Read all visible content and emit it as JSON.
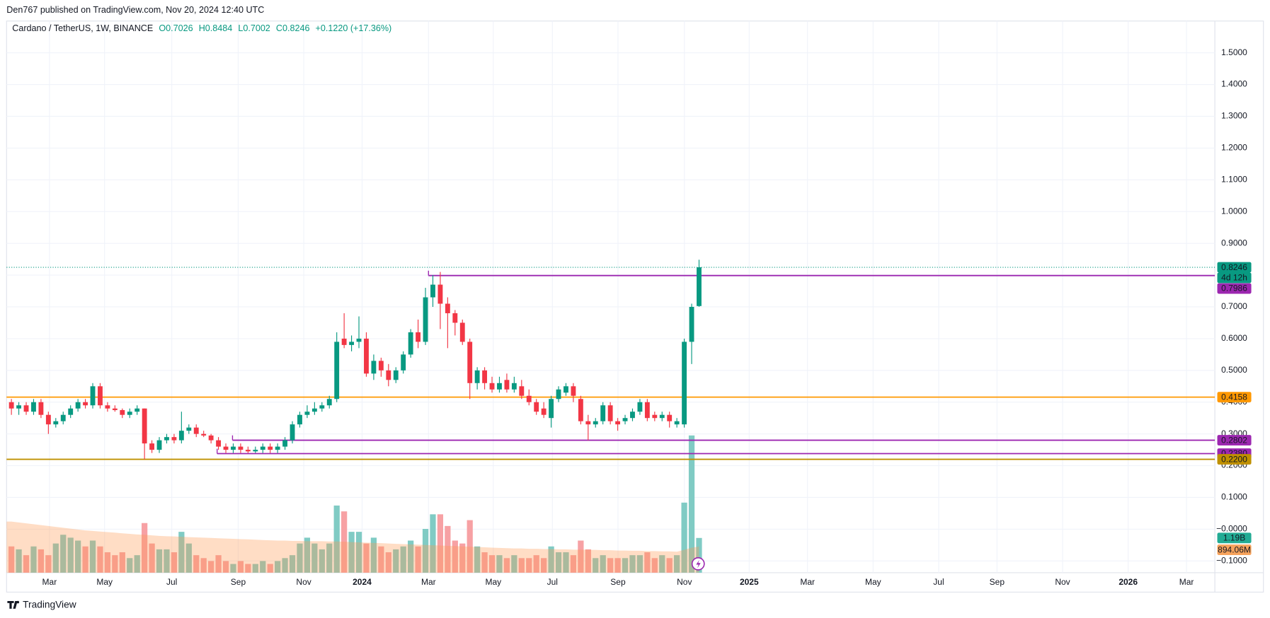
{
  "chart_data": {
    "type": "candlestick",
    "publisher": "Den767 published on TradingView.com, Nov 20, 2024 12:40 UTC",
    "symbol": "Cardano / TetherUS, 1W, BINANCE",
    "ohlc": [
      "O0.7026",
      "H0.8484",
      "L0.7002",
      "C0.8246"
    ],
    "change": "+0.1220 (+17.36%)",
    "countdown": "4d 12h",
    "up_color": "#089981",
    "down_color": "#f23645",
    "candles": [
      [
        0.4,
        0.41,
        0.36,
        0.38
      ],
      [
        0.38,
        0.4,
        0.36,
        0.39
      ],
      [
        0.39,
        0.4,
        0.36,
        0.37
      ],
      [
        0.37,
        0.41,
        0.36,
        0.4
      ],
      [
        0.4,
        0.41,
        0.35,
        0.36
      ],
      [
        0.36,
        0.37,
        0.3,
        0.33
      ],
      [
        0.33,
        0.35,
        0.32,
        0.34
      ],
      [
        0.34,
        0.37,
        0.33,
        0.36
      ],
      [
        0.36,
        0.39,
        0.35,
        0.38
      ],
      [
        0.38,
        0.41,
        0.37,
        0.4
      ],
      [
        0.4,
        0.41,
        0.38,
        0.39
      ],
      [
        0.39,
        0.46,
        0.38,
        0.45
      ],
      [
        0.45,
        0.46,
        0.38,
        0.39
      ],
      [
        0.39,
        0.4,
        0.37,
        0.38
      ],
      [
        0.38,
        0.39,
        0.37,
        0.375
      ],
      [
        0.375,
        0.38,
        0.35,
        0.36
      ],
      [
        0.36,
        0.38,
        0.35,
        0.37
      ],
      [
        0.37,
        0.39,
        0.36,
        0.38
      ],
      [
        0.38,
        0.38,
        0.22,
        0.27
      ],
      [
        0.27,
        0.28,
        0.24,
        0.25
      ],
      [
        0.25,
        0.29,
        0.24,
        0.28
      ],
      [
        0.28,
        0.3,
        0.27,
        0.29
      ],
      [
        0.29,
        0.3,
        0.27,
        0.28
      ],
      [
        0.28,
        0.37,
        0.27,
        0.31
      ],
      [
        0.31,
        0.33,
        0.3,
        0.32
      ],
      [
        0.32,
        0.33,
        0.29,
        0.3
      ],
      [
        0.3,
        0.31,
        0.29,
        0.295
      ],
      [
        0.295,
        0.3,
        0.27,
        0.28
      ],
      [
        0.28,
        0.29,
        0.25,
        0.26
      ],
      [
        0.26,
        0.27,
        0.24,
        0.25
      ],
      [
        0.25,
        0.27,
        0.24,
        0.26
      ],
      [
        0.26,
        0.27,
        0.24,
        0.25
      ],
      [
        0.25,
        0.26,
        0.24,
        0.245
      ],
      [
        0.245,
        0.26,
        0.24,
        0.25
      ],
      [
        0.25,
        0.27,
        0.24,
        0.26
      ],
      [
        0.26,
        0.27,
        0.24,
        0.25
      ],
      [
        0.25,
        0.27,
        0.24,
        0.26
      ],
      [
        0.26,
        0.29,
        0.25,
        0.28
      ],
      [
        0.28,
        0.34,
        0.27,
        0.33
      ],
      [
        0.33,
        0.37,
        0.32,
        0.36
      ],
      [
        0.36,
        0.39,
        0.35,
        0.37
      ],
      [
        0.37,
        0.4,
        0.36,
        0.38
      ],
      [
        0.38,
        0.4,
        0.37,
        0.39
      ],
      [
        0.39,
        0.42,
        0.38,
        0.41
      ],
      [
        0.41,
        0.62,
        0.4,
        0.59
      ],
      [
        0.6,
        0.68,
        0.57,
        0.58
      ],
      [
        0.58,
        0.61,
        0.56,
        0.59
      ],
      [
        0.59,
        0.67,
        0.57,
        0.6
      ],
      [
        0.6,
        0.62,
        0.48,
        0.49
      ],
      [
        0.49,
        0.55,
        0.47,
        0.53
      ],
      [
        0.53,
        0.54,
        0.48,
        0.5
      ],
      [
        0.5,
        0.52,
        0.45,
        0.47
      ],
      [
        0.47,
        0.51,
        0.46,
        0.5
      ],
      [
        0.5,
        0.56,
        0.49,
        0.55
      ],
      [
        0.55,
        0.63,
        0.54,
        0.62
      ],
      [
        0.62,
        0.66,
        0.57,
        0.59
      ],
      [
        0.59,
        0.76,
        0.58,
        0.73
      ],
      [
        0.73,
        0.8,
        0.7,
        0.77
      ],
      [
        0.77,
        0.81,
        0.63,
        0.71
      ],
      [
        0.71,
        0.73,
        0.57,
        0.68
      ],
      [
        0.68,
        0.69,
        0.61,
        0.65
      ],
      [
        0.65,
        0.66,
        0.58,
        0.59
      ],
      [
        0.59,
        0.6,
        0.41,
        0.46
      ],
      [
        0.46,
        0.51,
        0.44,
        0.5
      ],
      [
        0.5,
        0.51,
        0.44,
        0.46
      ],
      [
        0.46,
        0.48,
        0.43,
        0.44
      ],
      [
        0.44,
        0.48,
        0.43,
        0.46
      ],
      [
        0.47,
        0.49,
        0.43,
        0.44
      ],
      [
        0.44,
        0.48,
        0.43,
        0.46
      ],
      [
        0.45,
        0.47,
        0.41,
        0.42
      ],
      [
        0.42,
        0.44,
        0.39,
        0.4
      ],
      [
        0.4,
        0.41,
        0.36,
        0.37
      ],
      [
        0.38,
        0.4,
        0.35,
        0.36
      ],
      [
        0.35,
        0.42,
        0.32,
        0.41
      ],
      [
        0.41,
        0.45,
        0.4,
        0.44
      ],
      [
        0.43,
        0.46,
        0.42,
        0.45
      ],
      [
        0.45,
        0.46,
        0.4,
        0.42
      ],
      [
        0.41,
        0.42,
        0.33,
        0.34
      ],
      [
        0.34,
        0.36,
        0.28,
        0.33
      ],
      [
        0.33,
        0.35,
        0.32,
        0.34
      ],
      [
        0.34,
        0.4,
        0.33,
        0.39
      ],
      [
        0.39,
        0.4,
        0.33,
        0.34
      ],
      [
        0.34,
        0.35,
        0.31,
        0.33
      ],
      [
        0.34,
        0.36,
        0.33,
        0.35
      ],
      [
        0.35,
        0.38,
        0.34,
        0.37
      ],
      [
        0.37,
        0.41,
        0.36,
        0.4
      ],
      [
        0.4,
        0.41,
        0.34,
        0.35
      ],
      [
        0.36,
        0.37,
        0.34,
        0.35
      ],
      [
        0.35,
        0.37,
        0.34,
        0.36
      ],
      [
        0.36,
        0.37,
        0.32,
        0.34
      ],
      [
        0.33,
        0.35,
        0.32,
        0.34
      ],
      [
        0.33,
        0.6,
        0.32,
        0.59
      ],
      [
        0.59,
        0.71,
        0.52,
        0.7
      ],
      [
        0.7026,
        0.8484,
        0.7002,
        0.8246
      ]
    ],
    "volume": [
      0.9,
      0.8,
      0.6,
      0.9,
      0.8,
      0.6,
      1.0,
      1.3,
      1.2,
      1.1,
      0.9,
      1.1,
      0.9,
      0.7,
      0.6,
      0.7,
      0.5,
      0.6,
      1.7,
      1.0,
      0.8,
      0.8,
      0.7,
      1.4,
      1.0,
      0.6,
      0.5,
      0.4,
      0.6,
      0.4,
      0.3,
      0.4,
      0.3,
      0.3,
      0.4,
      0.3,
      0.4,
      0.5,
      0.6,
      1.0,
      1.2,
      1.0,
      0.8,
      1.0,
      2.3,
      2.1,
      1.4,
      1.4,
      1.0,
      1.2,
      0.9,
      0.7,
      0.8,
      0.9,
      1.1,
      0.9,
      1.5,
      2.0,
      2.0,
      1.6,
      1.1,
      1.0,
      1.8,
      0.9,
      0.7,
      0.6,
      0.6,
      0.5,
      0.6,
      0.5,
      0.5,
      0.6,
      0.5,
      0.9,
      0.7,
      0.7,
      0.6,
      1.1,
      0.8,
      0.5,
      0.6,
      0.5,
      0.5,
      0.5,
      0.6,
      0.6,
      0.7,
      0.5,
      0.6,
      0.5,
      0.6,
      2.4,
      4.7,
      1.19
    ],
    "volume_ma": [
      1.75,
      1.72,
      1.69,
      1.66,
      1.63,
      1.6,
      1.57,
      1.54,
      1.51,
      1.48,
      1.45,
      1.43,
      1.41,
      1.39,
      1.37,
      1.35,
      1.33,
      1.31,
      1.3,
      1.28,
      1.26,
      1.25,
      1.24,
      1.23,
      1.22,
      1.21,
      1.2,
      1.19,
      1.18,
      1.17,
      1.16,
      1.15,
      1.14,
      1.13,
      1.12,
      1.11,
      1.1,
      1.1,
      1.09,
      1.09,
      1.08,
      1.08,
      1.08,
      1.07,
      1.07,
      1.06,
      1.05,
      1.04,
      1.03,
      1.02,
      1.01,
      1.0,
      0.99,
      0.98,
      0.97,
      0.96,
      0.95,
      0.94,
      0.93,
      0.92,
      0.91,
      0.9,
      0.89,
      0.88,
      0.87,
      0.86,
      0.85,
      0.84,
      0.83,
      0.83,
      0.82,
      0.82,
      0.81,
      0.81,
      0.8,
      0.8,
      0.79,
      0.79,
      0.78,
      0.78,
      0.77,
      0.77,
      0.76,
      0.76,
      0.75,
      0.75,
      0.74,
      0.74,
      0.73,
      0.73,
      0.72,
      0.78,
      0.86,
      0.89406
    ],
    "volume_label": "1.19B",
    "volume_ma_label": "894.06M",
    "levels": [
      {
        "value": 0.7986,
        "label": "0.7986",
        "color": "#9c27b0"
      },
      {
        "value": 0.4158,
        "label": "0.4158",
        "color": "#ff9800"
      },
      {
        "value": 0.2802,
        "label": "0.2802",
        "color": "#9c27b0"
      },
      {
        "value": 0.238,
        "label": "0.2380",
        "color": "#9c27b0"
      },
      {
        "value": 0.22,
        "label": "0.2200",
        "color": "#bf9000"
      }
    ],
    "ylim": [
      -0.137,
      1.6
    ],
    "yticks": [
      {
        "value": 1.5,
        "label": "1.5000"
      },
      {
        "value": 1.4,
        "label": "1.4000"
      },
      {
        "value": 1.3,
        "label": "1.3000"
      },
      {
        "value": 1.2,
        "label": "1.2000"
      },
      {
        "value": 1.1,
        "label": "1.1000"
      },
      {
        "value": 1.0,
        "label": "1.0000"
      },
      {
        "value": 0.9,
        "label": "0.9000"
      },
      {
        "value": 0.8,
        "label": "0.8000"
      },
      {
        "value": 0.7,
        "label": "0.7000"
      },
      {
        "value": 0.6,
        "label": "0.6000"
      },
      {
        "value": 0.5,
        "label": "0.5000"
      },
      {
        "value": 0.4,
        "label": "0.4000"
      },
      {
        "value": 0.3,
        "label": "0.3000"
      },
      {
        "value": 0.2,
        "label": "0.2000"
      },
      {
        "value": 0.1,
        "label": "0.1000"
      },
      {
        "value": 0,
        "label": "−0.0000"
      },
      {
        "value": -0.1,
        "label": "−0.1000"
      }
    ],
    "xtick_labels": [
      "Mar",
      "May",
      "Jul",
      "Sep",
      "Nov",
      "2024",
      "Mar",
      "May",
      "Jul",
      "Sep",
      "Nov",
      "2025",
      "Mar",
      "May",
      "Jul",
      "Sep",
      "Nov",
      "2026",
      "Mar"
    ],
    "grid": true,
    "footer": "TradingView"
  }
}
